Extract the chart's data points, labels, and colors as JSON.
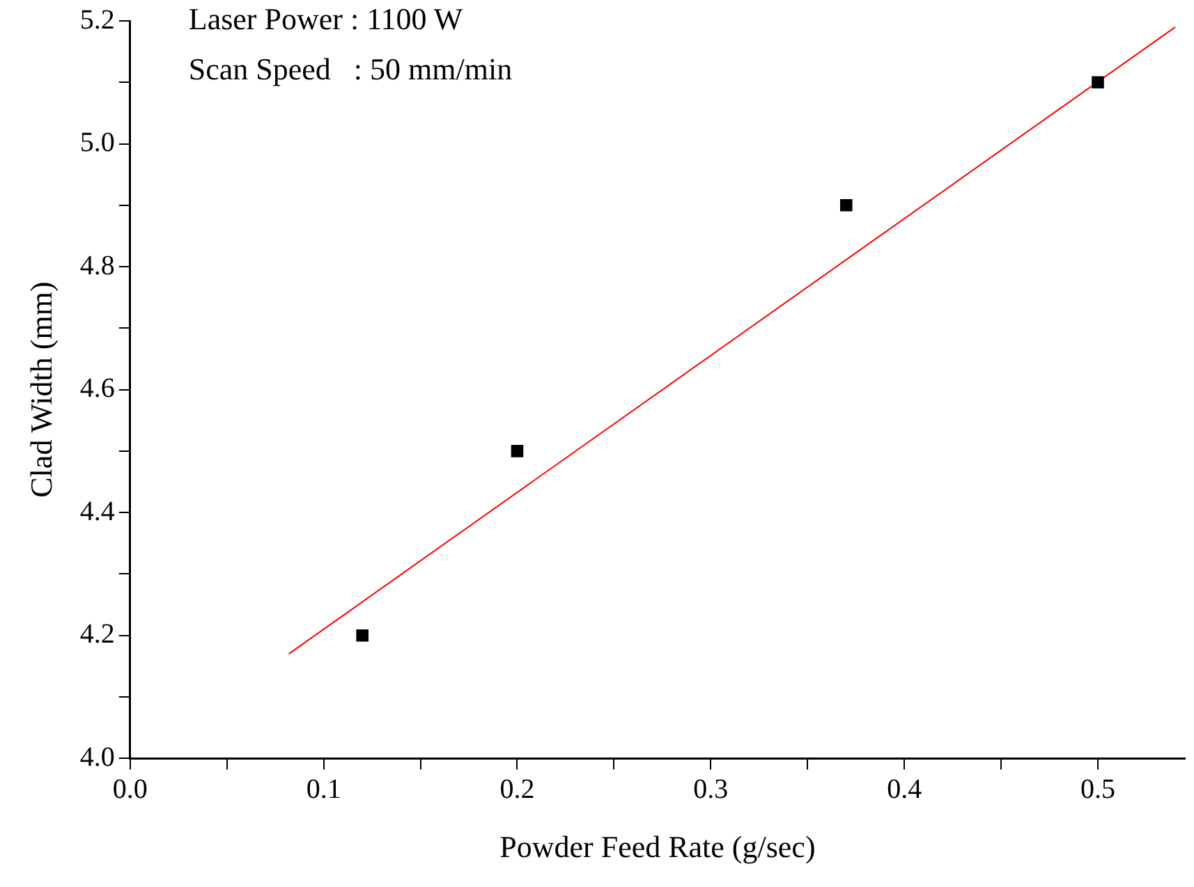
{
  "chart_data": {
    "type": "scatter",
    "xlabel": "Powder Feed Rate (g/sec)",
    "ylabel": "Clad Width (mm)",
    "annotations": [
      "Laser Power : 1100 W",
      "Scan Speed   : 50 mm/min"
    ],
    "xlim": [
      0,
      0.545
    ],
    "ylim": [
      4.0,
      5.2
    ],
    "xticks": [
      {
        "value": 0,
        "label": "0.0"
      },
      {
        "value": 0.05,
        "label": null
      },
      0.1,
      {
        "value": 0.15,
        "label": null
      },
      0.2,
      {
        "value": 0.25,
        "label": null
      },
      0.3,
      {
        "value": 0.35,
        "label": null
      },
      0.4,
      {
        "value": 0.45,
        "label": null
      },
      0.5
    ],
    "yticks": [
      {
        "value": 4.0,
        "label": "4.0"
      },
      {
        "value": 4.1,
        "label": null
      },
      4.2,
      {
        "value": 4.3,
        "label": null
      },
      4.4,
      {
        "value": 4.5,
        "label": null
      },
      4.6,
      {
        "value": 4.7,
        "label": null
      },
      4.8,
      {
        "value": 4.9,
        "label": null
      },
      {
        "value": 5.0,
        "label": "5.0"
      },
      {
        "value": 5.1,
        "label": null
      },
      5.2
    ],
    "grid": false,
    "legend": false,
    "series": [
      {
        "color": "#000000",
        "marker": "square",
        "x": [
          0.12,
          0.2,
          0.37,
          0.5
        ],
        "values": [
          4.2,
          4.5,
          4.9,
          5.1
        ]
      },
      {
        "type": "line",
        "color": "#ff0000",
        "marker": "none",
        "line_style": "solid",
        "x": [
          0.082,
          0.54
        ],
        "values": [
          4.17,
          5.19
        ]
      }
    ]
  }
}
